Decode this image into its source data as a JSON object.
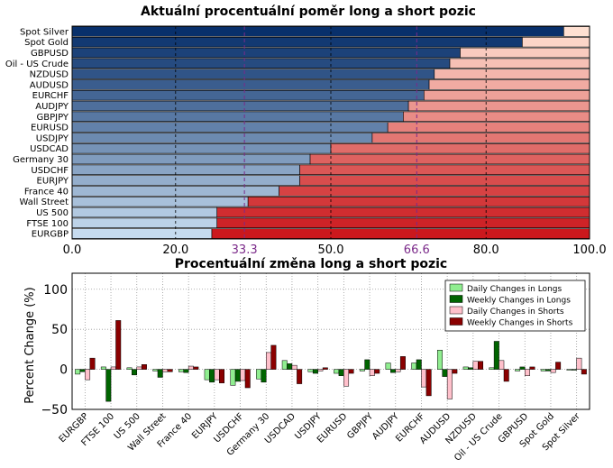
{
  "colors": {
    "long_gradient_start": "#08306b",
    "long_gradient_end": "#c6dbef",
    "short_gradient_start": "#fee0d2",
    "short_gradient_end": "#cb181d",
    "threshold_line": "#7b2a8a",
    "daily_longs": "#90ee90",
    "weekly_longs": "#006400",
    "daily_shorts": "#ffc0cb",
    "weekly_shorts": "#8b0000"
  },
  "chart_data": [
    {
      "type": "bar",
      "orientation": "horizontal-stacked",
      "title": "Aktuální procentuální poměr long a short pozic",
      "categories": [
        "Spot Silver",
        "Spot Gold",
        "GBPUSD",
        "Oil - US Crude",
        "NZDUSD",
        "AUDUSD",
        "EURCHF",
        "AUDJPY",
        "GBPJPY",
        "EURUSD",
        "USDJPY",
        "USDCAD",
        "Germany 30",
        "USDCHF",
        "EURJPY",
        "France 40",
        "Wall Street",
        "US 500",
        "FTSE 100",
        "EURGBP"
      ],
      "series": [
        {
          "name": "",
          "values": [
            95,
            87,
            75,
            73,
            70,
            69,
            68,
            65,
            64,
            61,
            58,
            50,
            46,
            44,
            44,
            40,
            34,
            28,
            28,
            27
          ]
        }
      ],
      "xlim": [
        0,
        100
      ],
      "x_ticks": [
        "0.0",
        "20.0",
        "50.0",
        "80.0",
        "100.0"
      ],
      "x_tick_values": [
        0,
        20,
        50,
        80,
        100
      ],
      "threshold_labels": [
        "33.3",
        "66.6"
      ],
      "threshold_values": [
        33.3,
        66.6
      ],
      "grid": "vertical dashed"
    },
    {
      "type": "bar",
      "orientation": "vertical-grouped",
      "title": "Procentuální změna long a short pozic",
      "ylabel": "Percent Change (%)",
      "ylim": [
        -50,
        120
      ],
      "y_ticks": [
        "−50",
        "0",
        "50",
        "100"
      ],
      "y_tick_values": [
        -50,
        0,
        50,
        100
      ],
      "categories": [
        "EURGBP",
        "FTSE 100",
        "US 500",
        "Wall Street",
        "France 40",
        "EURJPY",
        "USDCHF",
        "Germany 30",
        "USDCAD",
        "USDJPY",
        "EURUSD",
        "GBPJPY",
        "AUDJPY",
        "EURCHF",
        "AUDUSD",
        "NZDUSD",
        "Oil - US Crude",
        "GBPUSD",
        "Spot Gold",
        "Spot Silver"
      ],
      "series": [
        {
          "name": "Daily Changes in Longs",
          "values": [
            -6,
            3,
            2,
            -2,
            -3,
            -13,
            -20,
            -12,
            11,
            -3,
            -5,
            -2,
            8,
            8,
            24,
            3,
            2,
            -2,
            -2,
            -1
          ]
        },
        {
          "name": "Weekly Changes in Longs",
          "values": [
            -3,
            -40,
            -7,
            -10,
            -4,
            -16,
            -15,
            -16,
            7,
            -5,
            -8,
            12,
            -4,
            12,
            -9,
            2,
            35,
            3,
            -2,
            -1
          ]
        },
        {
          "name": "Daily Changes in Shorts",
          "values": [
            -13,
            3,
            3,
            -3,
            4,
            -13,
            -14,
            21,
            5,
            -2,
            -21,
            -8,
            -3,
            -22,
            -37,
            10,
            11,
            -8,
            -4,
            14
          ]
        },
        {
          "name": "Weekly Changes in Shorts",
          "values": [
            14,
            61,
            6,
            -3,
            3,
            -17,
            -23,
            30,
            -18,
            2,
            -5,
            -5,
            16,
            -33,
            -5,
            10,
            -15,
            3,
            9,
            -6
          ]
        }
      ],
      "legend_position": "top-right",
      "grid": "dotted"
    }
  ]
}
